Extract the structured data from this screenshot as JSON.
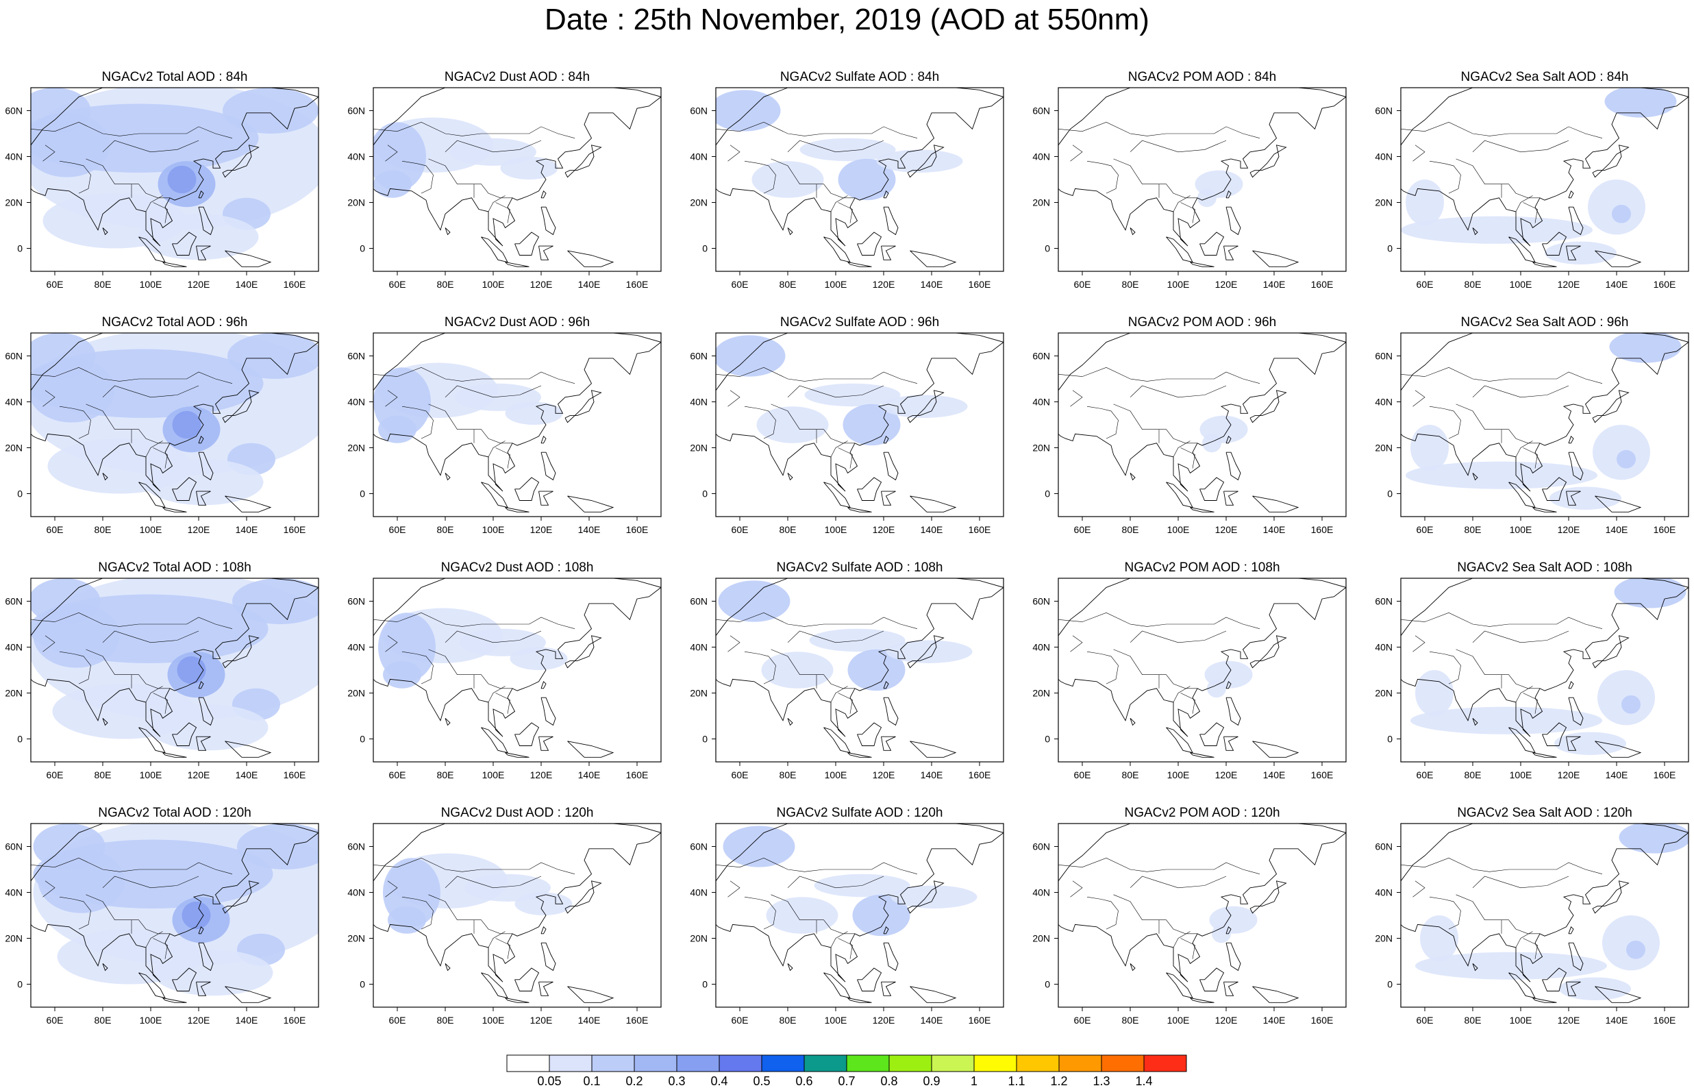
{
  "title": "Date : 25th November, 2019 (AOD at 550nm)",
  "rows": [
    [
      "NGACv2 Total AOD : 84h",
      "NGACv2 Dust AOD : 84h",
      "NGACv2 Sulfate AOD : 84h",
      "NGACv2 POM AOD : 84h",
      "NGACv2 Sea Salt AOD : 84h"
    ],
    [
      "NGACv2 Total AOD : 96h",
      "NGACv2 Dust AOD : 96h",
      "NGACv2 Sulfate AOD : 96h",
      "NGACv2 POM AOD : 96h",
      "NGACv2 Sea Salt AOD : 96h"
    ],
    [
      "NGACv2 Total AOD : 108h",
      "NGACv2 Dust AOD : 108h",
      "NGACv2 Sulfate AOD : 108h",
      "NGACv2 POM AOD : 108h",
      "NGACv2 Sea Salt AOD : 108h"
    ],
    [
      "NGACv2 Total AOD : 120h",
      "NGACv2 Dust AOD : 120h",
      "NGACv2 Sulfate AOD : 120h",
      "NGACv2 POM AOD : 120h",
      "NGACv2 Sea Salt  AOD : 120h"
    ]
  ],
  "map_extent": {
    "lon_min": 50,
    "lon_max": 170,
    "lat_min": -10,
    "lat_max": 70
  },
  "lon_ticks": [
    60,
    80,
    100,
    120,
    140,
    160
  ],
  "lon_tick_labels": [
    "60E",
    "80E",
    "100E",
    "120E",
    "140E",
    "160E"
  ],
  "lat_ticks": [
    0,
    20,
    40,
    60
  ],
  "lat_tick_labels": [
    "0",
    "20N",
    "40N",
    "60N"
  ],
  "colorbar": {
    "labels": [
      "0.05",
      "0.1",
      "0.2",
      "0.3",
      "0.4",
      "0.5",
      "0.6",
      "0.7",
      "0.8",
      "0.9",
      "1",
      "1.1",
      "1.2",
      "1.3",
      "1.4"
    ],
    "colors": [
      "#ffffff",
      "#dbe4fb",
      "#bccdf8",
      "#a2b8f5",
      "#869ff0",
      "#6479ee",
      "#0f61ee",
      "#0b9a8c",
      "#5ce61b",
      "#9def12",
      "#cbf552",
      "#fffb02",
      "#ffc700",
      "#ff9901",
      "#ff6e01",
      "#fe2d18"
    ]
  }
}
